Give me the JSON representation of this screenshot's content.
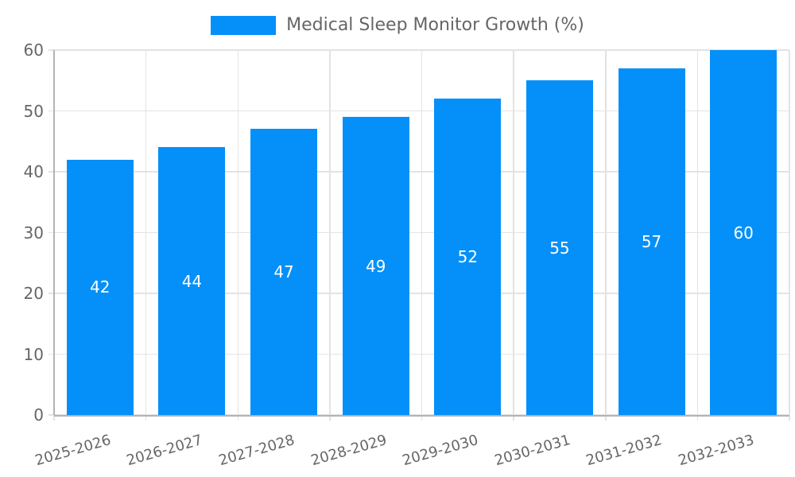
{
  "chart_data": {
    "type": "bar",
    "title": "",
    "legend": "Medical Sleep Monitor Growth (%)",
    "legend_position": "top",
    "categories": [
      "2025-2026",
      "2026-2027",
      "2027-2028",
      "2028-2029",
      "2029-2030",
      "2030-2031",
      "2031-2032",
      "2032-2033"
    ],
    "values": [
      42,
      44,
      47,
      49,
      52,
      55,
      57,
      60
    ],
    "xlabel": "",
    "ylabel": "",
    "ylim": [
      0,
      60
    ],
    "yticks": [
      0,
      10,
      20,
      30,
      40,
      50,
      60
    ],
    "grid": true,
    "x_label_rotation_deg": -16,
    "bar_color": "#0490f8",
    "value_label_color": "#ffffff",
    "axis_text_color": "#666666",
    "grid_color": "#e3e3e3",
    "axis_line_color": "#b3b3b3"
  }
}
